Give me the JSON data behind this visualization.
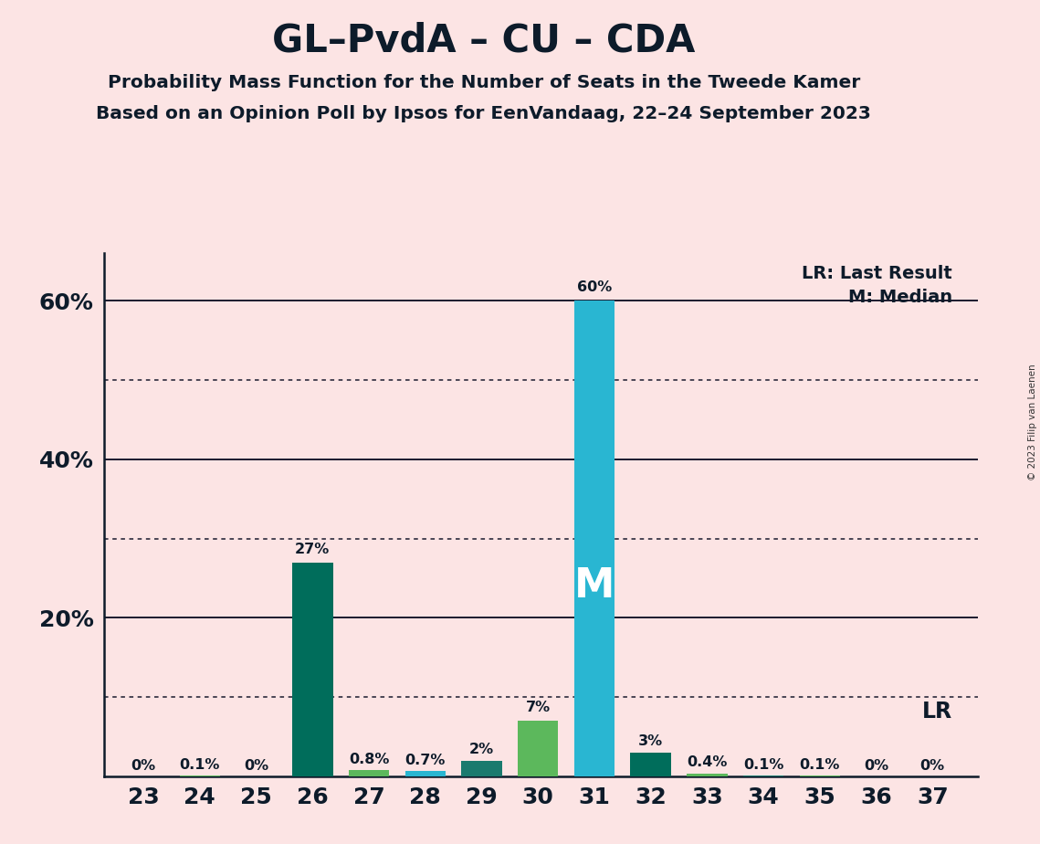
{
  "title": "GL–PvdA – CU – CDA",
  "subtitle1": "Probability Mass Function for the Number of Seats in the Tweede Kamer",
  "subtitle2": "Based on an Opinion Poll by Ipsos for EenVandaag, 22–24 September 2023",
  "copyright": "© 2023 Filip van Laenen",
  "seats": [
    23,
    24,
    25,
    26,
    27,
    28,
    29,
    30,
    31,
    32,
    33,
    34,
    35,
    36,
    37
  ],
  "probabilities": [
    0.0,
    0.1,
    0.0,
    27.0,
    0.8,
    0.7,
    2.0,
    7.0,
    60.0,
    3.0,
    0.4,
    0.1,
    0.1,
    0.0,
    0.0
  ],
  "labels": [
    "0%",
    "0.1%",
    "0%",
    "27%",
    "0.8%",
    "0.7%",
    "2%",
    "7%",
    "60%",
    "3%",
    "0.4%",
    "0.1%",
    "0.1%",
    "0%",
    "0%"
  ],
  "bar_colors": [
    "#1a7a6e",
    "#5cb85c",
    "#1a7a6e",
    "#006d5b",
    "#5cb85c",
    "#29b6d2",
    "#1a7a6e",
    "#5cb85c",
    "#29b6d2",
    "#006d5b",
    "#5cb85c",
    "#1a7a6e",
    "#5cb85c",
    "#1a7a6e",
    "#5cb85c"
  ],
  "median_seat": 31,
  "lr_value": 10.0,
  "background_color": "#fce4e4",
  "ylim_max": 66,
  "solid_gridlines": [
    20,
    40,
    60
  ],
  "dotted_gridlines": [
    10,
    30,
    50
  ],
  "legend_lr": "LR: Last Result",
  "legend_m": "M: Median",
  "lr_label": "LR",
  "bar_width": 0.72
}
